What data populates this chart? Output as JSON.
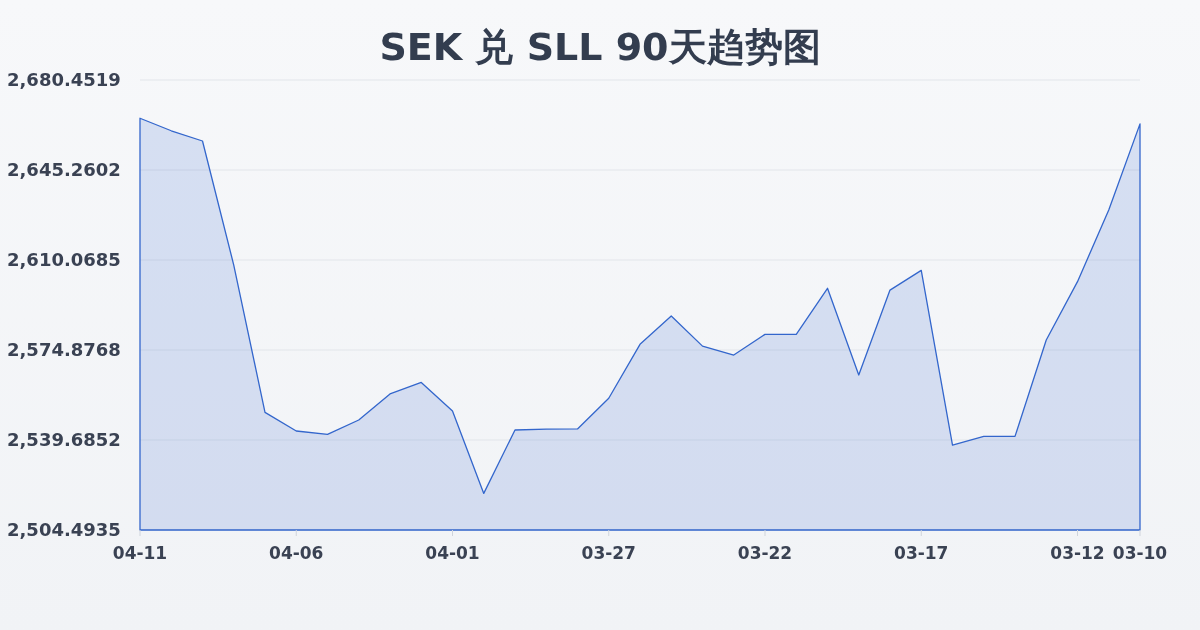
{
  "chart_data": {
    "type": "area",
    "title": "SEK 兑 SLL 90天趋势图",
    "x": [
      "--04-11",
      "--04-10",
      "--04-09",
      "--04-08",
      "--04-07",
      "--04-06",
      "--04-05",
      "--04-04",
      "--04-03",
      "--04-02",
      "--04-01",
      "--03-31",
      "--03-30",
      "--03-29",
      "--03-28",
      "--03-27",
      "--03-26",
      "--03-25",
      "--03-24",
      "--03-23",
      "--03-22",
      "--03-21",
      "--03-20",
      "--03-19",
      "--03-18",
      "--03-17",
      "--03-16",
      "--03-15",
      "--03-14",
      "--03-13",
      "--03-12",
      "--03-11",
      "--03-10"
    ],
    "values": [
      2665.5,
      2660.6,
      2656.6,
      2608.1,
      2550.5,
      2543.2,
      2541.9,
      2547.5,
      2557.7,
      2562.2,
      2551.0,
      2518.8,
      2543.6,
      2543.9,
      2544.0,
      2556.0,
      2577.1,
      2588.2,
      2576.4,
      2572.9,
      2581.0,
      2581.0,
      2599.0,
      2565.1,
      2598.3,
      2606.0,
      2537.7,
      2541.1,
      2541.1,
      2578.8,
      2601.6,
      2629.6,
      2663.3
    ],
    "color": "#3366cc",
    "xlim": [
      "--04-11",
      "--03-10"
    ],
    "xticks": [
      {
        "value": "--04-11",
        "label": "04-11"
      },
      {
        "value": "--04-06",
        "label": "04-06"
      },
      {
        "value": "--04-01",
        "label": "04-01"
      },
      {
        "value": "--03-27",
        "label": "03-27"
      },
      {
        "value": "--03-22",
        "label": "03-22"
      },
      {
        "value": "--03-17",
        "label": "03-17"
      },
      {
        "value": "--03-12",
        "label": "03-12"
      },
      {
        "value": "--03-10",
        "label": "03-10"
      }
    ],
    "ylim": [
      2504.4935,
      2680.4519
    ],
    "yticks": [
      {
        "value": 2504.4935,
        "label": "2,504.4935"
      },
      {
        "value": 2539.6852,
        "label": "2,539.6852"
      },
      {
        "value": 2574.8768,
        "label": "2,574.8768"
      },
      {
        "value": 2610.0685,
        "label": "2,610.0685"
      },
      {
        "value": 2645.2602,
        "label": "2,645.2602"
      },
      {
        "value": 2680.4519,
        "label": "2,680.4519"
      }
    ],
    "grid": "y"
  }
}
